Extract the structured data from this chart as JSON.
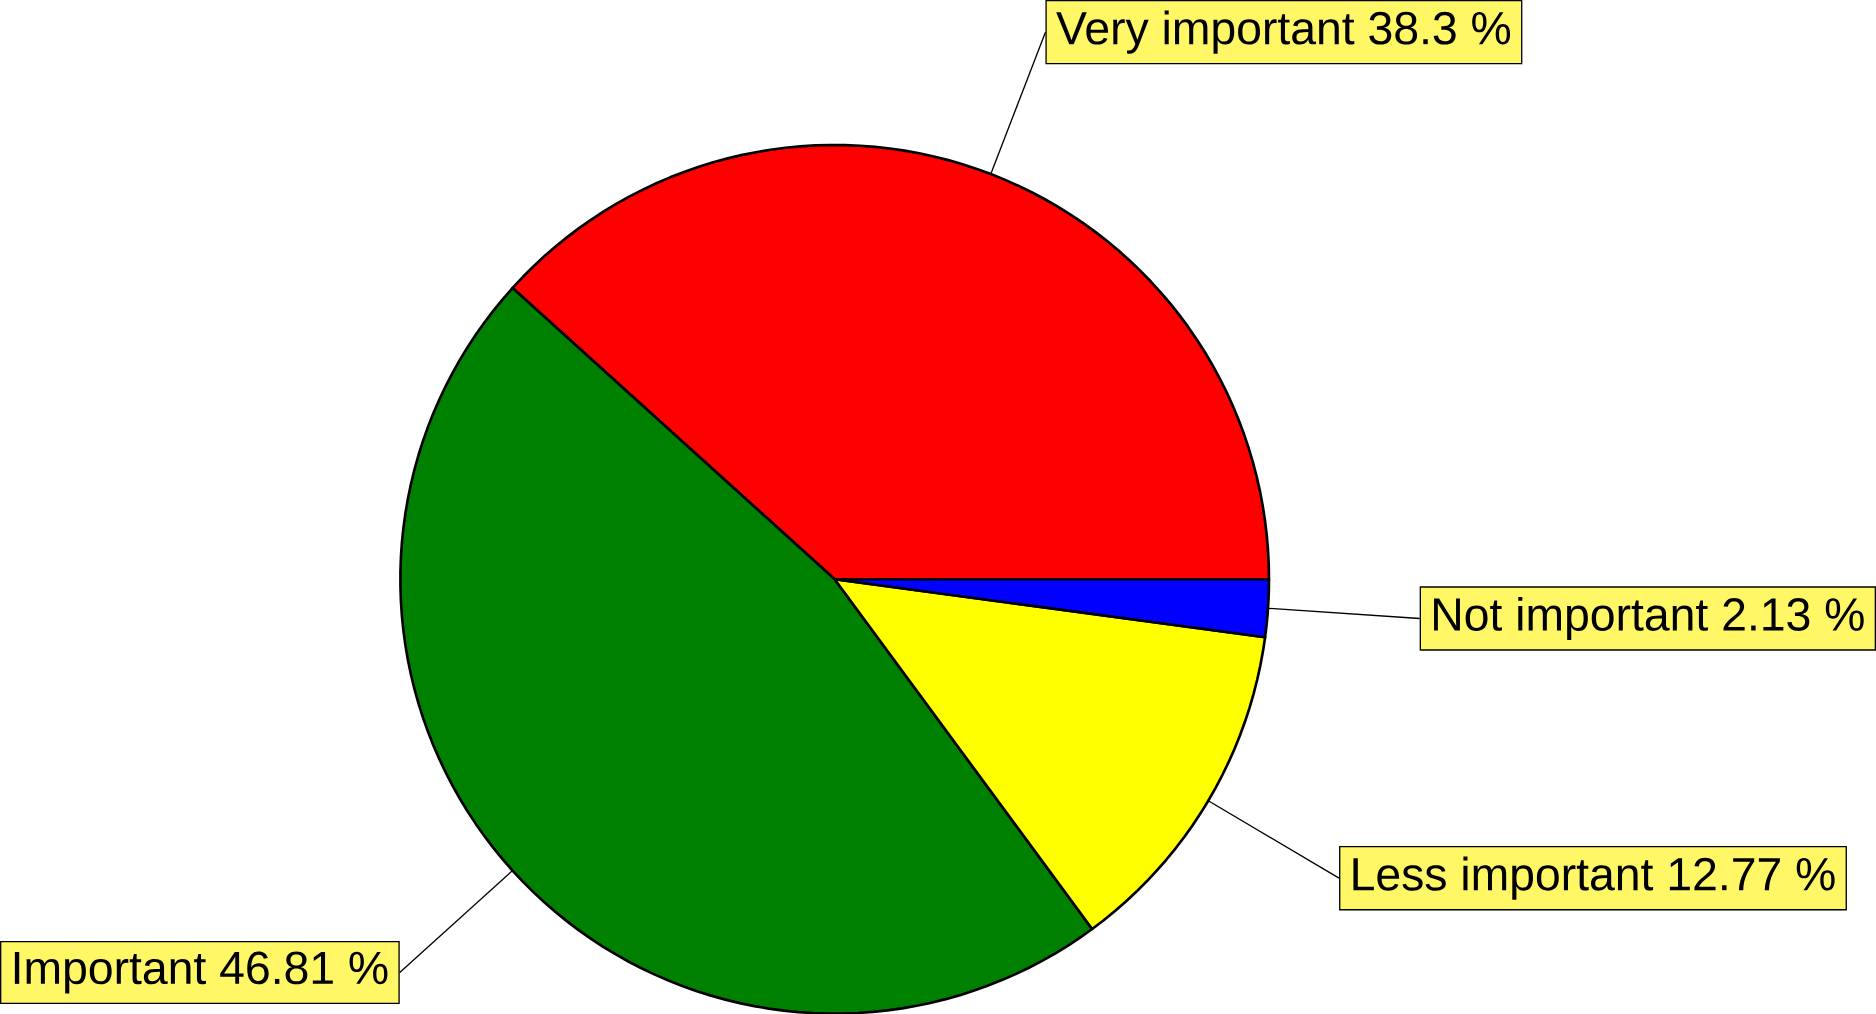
{
  "chart_data": {
    "type": "pie",
    "categories": [
      "Very important",
      "Important",
      "Less important",
      "Not important"
    ],
    "values": [
      38.3,
      46.81,
      12.77,
      2.13
    ],
    "colors": [
      "#ff0000",
      "#008000",
      "#ffff00",
      "#0000ff"
    ],
    "value_labels": [
      "38.3 %",
      "46.81 %",
      "12.77 %",
      "2.13 %"
    ]
  }
}
